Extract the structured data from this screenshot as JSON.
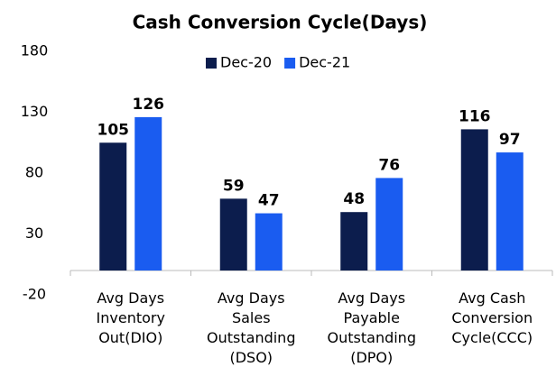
{
  "chart_data": {
    "type": "bar",
    "title": "Cash Conversion Cycle(Days)",
    "categories": [
      "Avg Days\nInventory\nOut(DIO)",
      "Avg Days\nSales\nOutstanding\n(DSO)",
      "Avg Days\nPayable\nOutstanding\n(DPO)",
      "Avg Cash\nConversion\nCycle(CCC)"
    ],
    "series": [
      {
        "name": "Dec-20",
        "color": "#0c1d4d",
        "values": [
          105,
          59,
          48,
          116
        ]
      },
      {
        "name": "Dec-21",
        "color": "#1a5cf0",
        "values": [
          126,
          47,
          76,
          97
        ]
      }
    ],
    "ylim": [
      -20,
      180
    ],
    "yticks": [
      -20,
      30,
      80,
      130,
      180
    ],
    "grid": false,
    "legend": "top"
  }
}
